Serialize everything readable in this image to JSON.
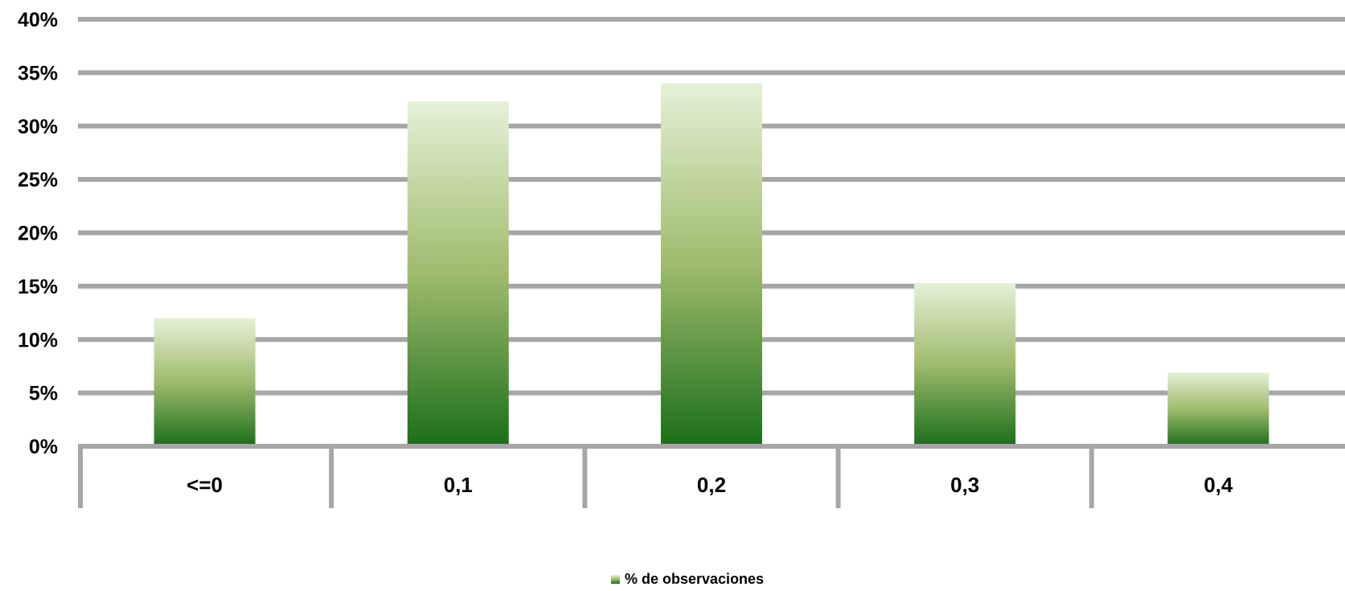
{
  "chart_data": {
    "type": "bar",
    "categories": [
      "<=0",
      "0,1",
      "0,2",
      "0,3",
      "0,4"
    ],
    "series": [
      {
        "name": "% de observaciones",
        "values": [
          12.0,
          32.3,
          34.0,
          15.3,
          6.9
        ]
      }
    ],
    "y_ticks": [
      "0%",
      "5%",
      "10%",
      "15%",
      "20%",
      "25%",
      "30%",
      "35%",
      "40%"
    ],
    "ylim": [
      0,
      40
    ],
    "grid": true,
    "legend_position": "bottom",
    "colors": {
      "bar_top": "#e4f1d8",
      "bar_mid": "#9fbb6c",
      "bar_bottom": "#1a6e1a",
      "gridline": "#a6a6a6",
      "axis": "#a6a6a6"
    }
  }
}
